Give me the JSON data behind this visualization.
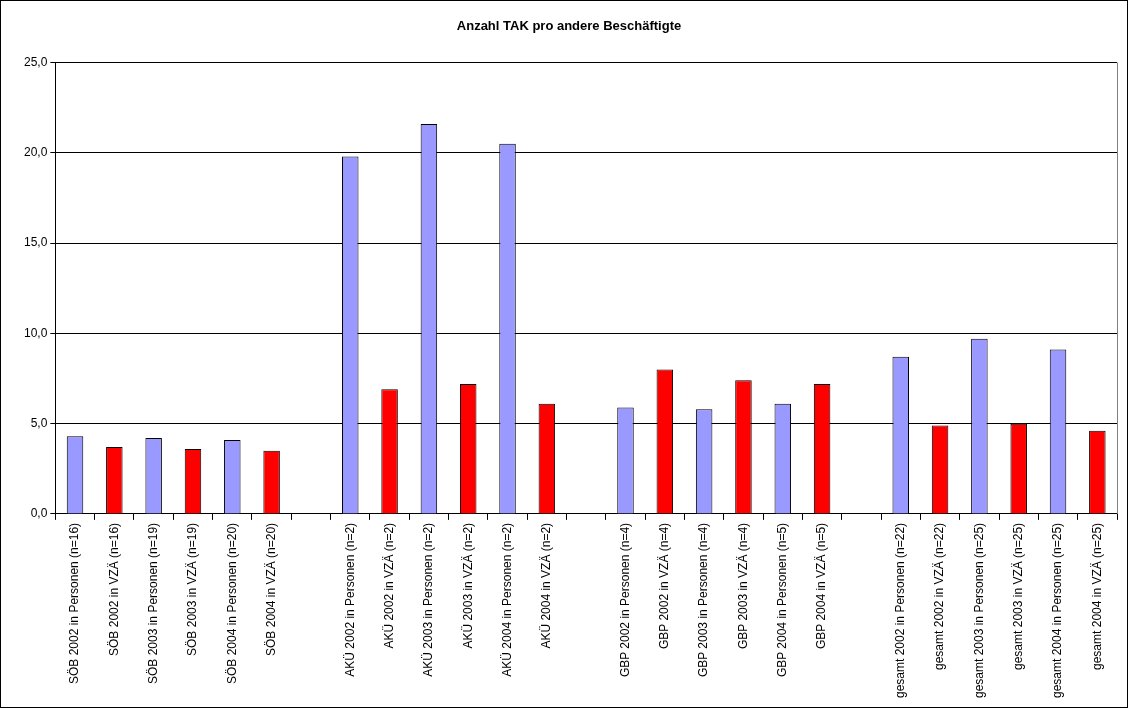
{
  "chart_data": {
    "type": "bar",
    "title": "Anzahl TAK pro andere Beschäftigte",
    "categories": [
      "SÖB 2002 in Personen (n=16)",
      "SÖB 2002 in VZÄ (n=16)",
      "SÖB 2003 in Personen (n=19)",
      "SÖB 2003 in VZÄ (n=19)",
      "SÖB 2004 in Personen (n=20)",
      "SÖB 2004 in VZÄ (n=20)",
      null,
      "AKÜ 2002 in Personen (n=2)",
      "AKÜ 2002 in VZÄ (n=2)",
      "AKÜ 2003 in Personen (n=2)",
      "AKÜ 2003 in VZÄ (n=2)",
      "AKÜ 2004 in Personen (n=2)",
      "AKÜ 2004 in VZÄ (n=2)",
      null,
      "GBP 2002 in Personen (n=4)",
      "GBP 2002 in VZÄ (n=4)",
      "GBP 2003 in Personen (n=4)",
      "GBP 2003 in VZÄ (n=4)",
      "GBP 2004 in Personen (n=5)",
      "GBP 2004 in VZÄ (n=5)",
      null,
      "gesamt 2002 in Personen (n=22)",
      "gesamt 2002 in VZÄ (n=22)",
      "gesamt 2003 in Personen (n=25)",
      "gesamt 2003 in VZÄ (n=25)",
      "gesamt 2004 in Personen (n=25)",
      "gesamt 2004 in VZÄ (n=25)"
    ],
    "values": [
      4.3,
      3.7,
      4.2,
      3.6,
      4.1,
      3.5,
      null,
      19.8,
      6.9,
      21.6,
      7.2,
      20.5,
      6.1,
      null,
      5.9,
      8.0,
      5.8,
      7.4,
      6.1,
      7.2,
      null,
      8.7,
      4.9,
      9.7,
      5.0,
      9.1,
      4.6
    ],
    "colors": [
      "#9999ff",
      "#ff0000",
      "#9999ff",
      "#ff0000",
      "#9999ff",
      "#ff0000",
      "#ffffff",
      "#9999ff",
      "#ff0000",
      "#9999ff",
      "#ff0000",
      "#9999ff",
      "#ff0000",
      "#ffffff",
      "#9999ff",
      "#ff0000",
      "#9999ff",
      "#ff0000",
      "#9999ff",
      "#ff0000",
      "#ffffff",
      "#9999ff",
      "#ff0000",
      "#9999ff",
      "#ff0000",
      "#9999ff",
      "#ff0000"
    ],
    "ylim": [
      0,
      25
    ],
    "yticks": [
      {
        "value": 0,
        "label": "0,0"
      },
      {
        "value": 5,
        "label": "5,0"
      },
      {
        "value": 10,
        "label": "10,0"
      },
      {
        "value": 15,
        "label": "15,0"
      },
      {
        "value": 20,
        "label": "20,0"
      },
      {
        "value": 25,
        "label": "25,0"
      }
    ],
    "grid": "y",
    "legend": false
  }
}
